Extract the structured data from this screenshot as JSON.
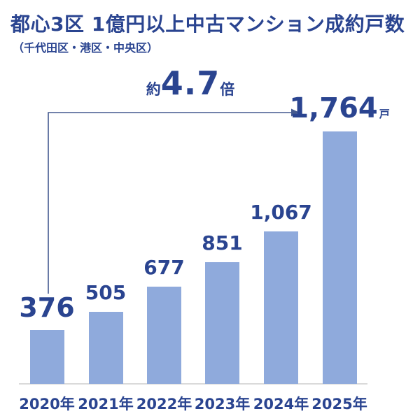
{
  "header": {
    "title": "都心3区 1億円以上中古マンション成約戸数",
    "subtitle": "（千代田区・港区・中央区）"
  },
  "colors": {
    "bar": "#8faadc",
    "text_navy": "#2a4490",
    "axis_line": "#dadada",
    "arrow": "#44598f",
    "background": "#ffffff"
  },
  "chart_data": {
    "type": "bar",
    "title": "都心3区 1億円以上中古マンション成約戸数",
    "subtitle": "（千代田区・港区・中央区）",
    "categories": [
      "2020年",
      "2021年",
      "2022年",
      "2023年",
      "2024年",
      "2025年"
    ],
    "values": [
      376,
      505,
      677,
      851,
      1067,
      1764
    ],
    "value_labels": [
      "376",
      "505",
      "677",
      "851",
      "1,067",
      "1,764"
    ],
    "unit": "戸",
    "annotation": {
      "prefix": "約",
      "value": "4.7",
      "suffix": "倍",
      "meaning": "2020年から2025年で約4.7倍"
    },
    "ylim": [
      0,
      1800
    ],
    "grid": false,
    "legend": false,
    "xlabel": "",
    "ylabel": ""
  }
}
